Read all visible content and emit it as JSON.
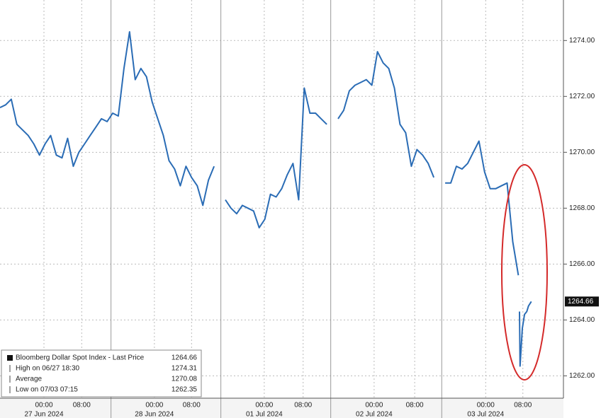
{
  "chart_data": {
    "type": "line",
    "series": [
      {
        "name": "Bloomberg Dollar Spot Index - Last Price",
        "color": "#2a6cb5",
        "x": [
          0,
          1,
          2,
          3,
          4,
          5,
          6,
          7,
          8,
          9,
          10,
          11,
          12,
          13,
          14,
          15,
          16,
          17,
          18,
          19,
          20,
          21,
          22,
          23,
          24,
          25,
          26,
          27,
          28,
          29,
          30,
          31,
          32,
          33,
          34,
          35,
          36,
          37,
          38,
          39,
          40,
          41,
          42,
          43,
          44,
          45,
          46,
          47,
          48,
          49,
          50,
          51,
          52,
          53,
          54,
          55,
          56,
          57,
          58,
          59,
          60,
          61,
          62,
          63,
          64,
          65,
          66,
          67,
          68,
          69,
          70,
          71,
          72,
          73,
          74,
          75,
          76,
          77,
          78,
          79,
          80,
          81,
          82,
          83,
          84,
          85,
          86,
          87,
          88,
          89,
          90,
          91,
          92,
          92.1,
          92.2,
          92.3,
          92.7,
          93.1,
          93.5,
          93.8,
          94.3
        ],
        "values": [
          1271.6,
          1271.7,
          1271.9,
          1271.0,
          1270.8,
          1270.6,
          1270.3,
          1269.9,
          1270.3,
          1270.6,
          1269.9,
          1269.8,
          1270.5,
          1269.5,
          1270.0,
          1270.3,
          1270.6,
          1270.9,
          1271.2,
          1271.1,
          1271.4,
          1271.3,
          1273.0,
          1274.31,
          1272.6,
          1273.0,
          1272.7,
          1271.8,
          1271.2,
          1270.6,
          1269.7,
          1269.4,
          1268.8,
          1269.5,
          1269.1,
          1268.8,
          1268.1,
          1269.0,
          1269.5,
          null,
          1268.3,
          1268.0,
          1267.8,
          1268.1,
          1268.0,
          1267.9,
          1267.3,
          1267.6,
          1268.5,
          1268.4,
          1268.7,
          1269.2,
          1269.6,
          1268.3,
          1272.3,
          1271.4,
          1271.4,
          1271.2,
          1271.0,
          null,
          1271.2,
          1271.5,
          1272.2,
          1272.4,
          1272.5,
          1272.6,
          1272.4,
          1273.6,
          1273.2,
          1273.0,
          1272.3,
          1271.0,
          1270.7,
          1269.5,
          1270.1,
          1269.9,
          1269.6,
          1269.1,
          null,
          1268.9,
          1268.9,
          1269.5,
          1269.4,
          1269.6,
          1270.0,
          1270.4,
          1269.3,
          1268.7,
          1268.7,
          1268.8,
          1268.9,
          1266.8,
          1265.6,
          null,
          1264.3,
          1262.35,
          1263.7,
          1264.2,
          1264.3,
          1264.5,
          1264.66
        ]
      }
    ],
    "xlim": [
      0,
      100
    ],
    "ylim": [
      1261.2,
      1275.45
    ],
    "yticks": [
      {
        "value": 1262,
        "label": "1262.00"
      },
      {
        "value": 1264,
        "label": "1264.00"
      },
      {
        "value": 1266,
        "label": "1266.00"
      },
      {
        "value": 1268,
        "label": "1268.00"
      },
      {
        "value": 1270,
        "label": "1270.00"
      },
      {
        "value": 1272,
        "label": "1272.00"
      },
      {
        "value": 1274,
        "label": "1274.00"
      }
    ],
    "xticks": [
      {
        "value": 7.8,
        "label": "00:00"
      },
      {
        "value": 14.5,
        "label": "08:00"
      },
      {
        "value": 27.4,
        "label": "00:00"
      },
      {
        "value": 34,
        "label": "08:00"
      },
      {
        "value": 46.9,
        "label": "00:00"
      },
      {
        "value": 53.8,
        "label": "08:00"
      },
      {
        "value": 66.4,
        "label": "00:00"
      },
      {
        "value": 73.6,
        "label": "08:00"
      },
      {
        "value": 86.2,
        "label": "00:00"
      },
      {
        "value": 92.8,
        "label": "08:00"
      }
    ],
    "date_labels": [
      {
        "value": 7.8,
        "label": "27 Jun 2024"
      },
      {
        "value": 27.4,
        "label": "28 Jun 2024"
      },
      {
        "value": 46.9,
        "label": "01 Jul 2024"
      },
      {
        "value": 66.4,
        "label": "02 Jul 2024"
      },
      {
        "value": 86.2,
        "label": "03 Jul 2024"
      }
    ],
    "day_breaks": [
      19.7,
      39.2,
      58.7,
      78.4
    ],
    "grid": true,
    "legend": [
      {
        "label": "Bloomberg Dollar Spot Index - Last Price",
        "value": 1264.66
      },
      {
        "label": "High on 06/27 18:30",
        "value": 1274.31
      },
      {
        "label": "Average",
        "value": 1270.08
      },
      {
        "label": "Low on 07/03 07:15",
        "value": 1262.35
      }
    ]
  }
}
